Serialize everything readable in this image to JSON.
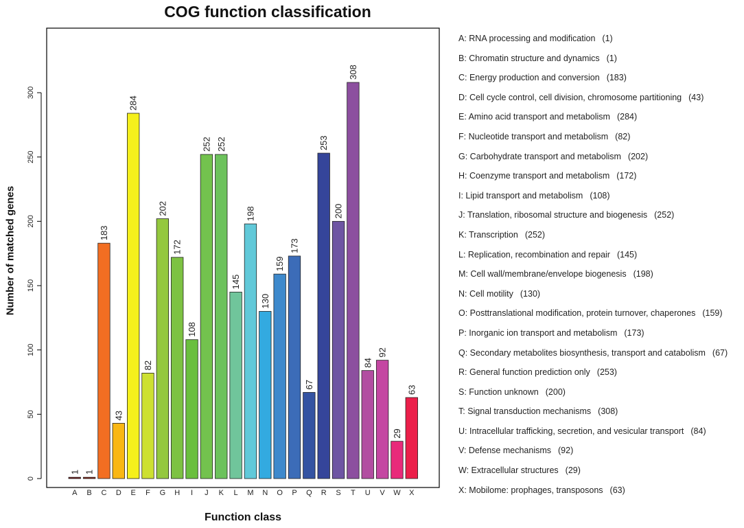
{
  "chart_data": {
    "type": "bar",
    "title": "COG function classification",
    "xlabel": "Function class",
    "ylabel": "Number of matched genes",
    "ylim": [
      0,
      340
    ],
    "yticks": [
      0,
      50,
      100,
      150,
      200,
      250,
      300
    ],
    "grid": false,
    "legend_position": "right",
    "categories": [
      "A",
      "B",
      "C",
      "D",
      "E",
      "F",
      "G",
      "H",
      "I",
      "J",
      "K",
      "L",
      "M",
      "N",
      "O",
      "P",
      "Q",
      "R",
      "S",
      "T",
      "U",
      "V",
      "W",
      "X"
    ],
    "values": [
      1,
      1,
      183,
      43,
      284,
      82,
      202,
      172,
      108,
      252,
      252,
      145,
      198,
      130,
      159,
      173,
      67,
      253,
      200,
      308,
      84,
      92,
      29,
      63
    ],
    "colors": [
      "#7a1212",
      "#8f1a0c",
      "#f26e22",
      "#f9b714",
      "#f5f01c",
      "#cde031",
      "#94c83e",
      "#7dc242",
      "#6abf3e",
      "#73c24e",
      "#6cc25c",
      "#70c59b",
      "#61c9d9",
      "#33aae0",
      "#3e89cc",
      "#3c6cb8",
      "#3453a2",
      "#35459a",
      "#6e55a3",
      "#8c4f9f",
      "#b24ea1",
      "#c447a2",
      "#e82a7a",
      "#eb1f4a"
    ],
    "legend": [
      {
        "label": "A: RNA processing and modification",
        "count": "(1)"
      },
      {
        "label": "B: Chromatin structure and dynamics",
        "count": "(1)"
      },
      {
        "label": "C: Energy production and conversion",
        "count": "(183)"
      },
      {
        "label": "D: Cell cycle control, cell division, chromosome partitioning",
        "count": "(43)"
      },
      {
        "label": "E: Amino acid transport and metabolism",
        "count": "(284)"
      },
      {
        "label": "F: Nucleotide transport and metabolism",
        "count": "(82)"
      },
      {
        "label": "G: Carbohydrate transport and metabolism",
        "count": "(202)"
      },
      {
        "label": "H: Coenzyme transport and metabolism",
        "count": "(172)"
      },
      {
        "label": "I: Lipid transport and metabolism",
        "count": "(108)"
      },
      {
        "label": "J: Translation, ribosomal structure and biogenesis",
        "count": "(252)"
      },
      {
        "label": "K: Transcription",
        "count": "(252)"
      },
      {
        "label": "L: Replication, recombination and repair",
        "count": "(145)"
      },
      {
        "label": "M: Cell wall/membrane/envelope biogenesis",
        "count": "(198)"
      },
      {
        "label": "N: Cell motility",
        "count": "(130)"
      },
      {
        "label": "O: Posttranslational modification, protein turnover, chaperones",
        "count": "(159)"
      },
      {
        "label": "P: Inorganic ion transport and metabolism",
        "count": "(173)"
      },
      {
        "label": "Q: Secondary metabolites biosynthesis, transport and catabolism",
        "count": "(67)"
      },
      {
        "label": "R: General function prediction only",
        "count": "(253)"
      },
      {
        "label": "S: Function unknown",
        "count": "(200)"
      },
      {
        "label": "T: Signal transduction mechanisms",
        "count": "(308)"
      },
      {
        "label": "U: Intracellular trafficking, secretion, and vesicular transport",
        "count": "(84)"
      },
      {
        "label": "V: Defense mechanisms",
        "count": "(92)"
      },
      {
        "label": "W: Extracellular structures",
        "count": "(29)"
      },
      {
        "label": "X: Mobilome: prophages, transposons",
        "count": "(63)"
      }
    ]
  }
}
